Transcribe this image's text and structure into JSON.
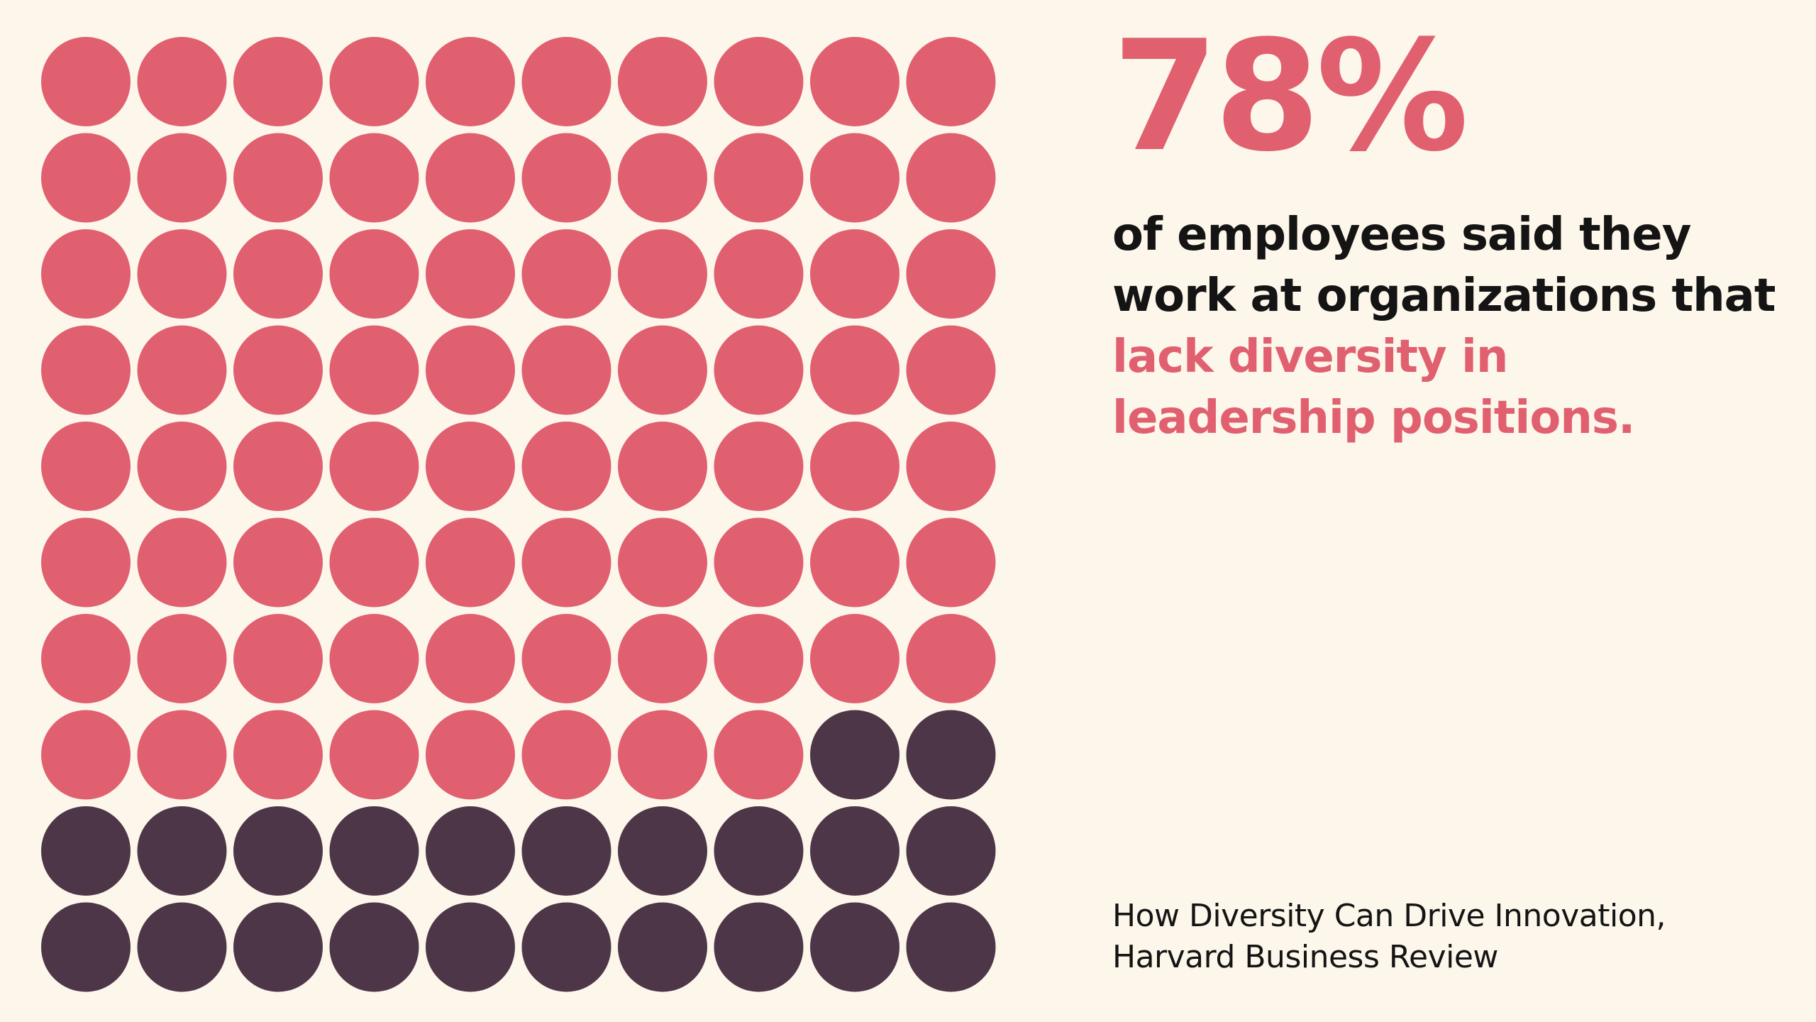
{
  "colors": {
    "background": "#fdf6ea",
    "accent": "#e06070",
    "dark": "#4c3648",
    "text": "#141414"
  },
  "chart_data": {
    "type": "waffle",
    "rows": 10,
    "columns": 10,
    "total": 100,
    "categories": [
      {
        "value": 78,
        "color": "#e06070"
      },
      {
        "value": 22,
        "color": "#4c3648"
      }
    ]
  },
  "headline": {
    "stat": "78%",
    "statement_plain": "of employees said they work at organizations that ",
    "statement_highlight": "lack diversity in leadership positions."
  },
  "source": {
    "line1": "How Diversity Can Drive Innovation,",
    "line2": "Harvard Business Review"
  }
}
